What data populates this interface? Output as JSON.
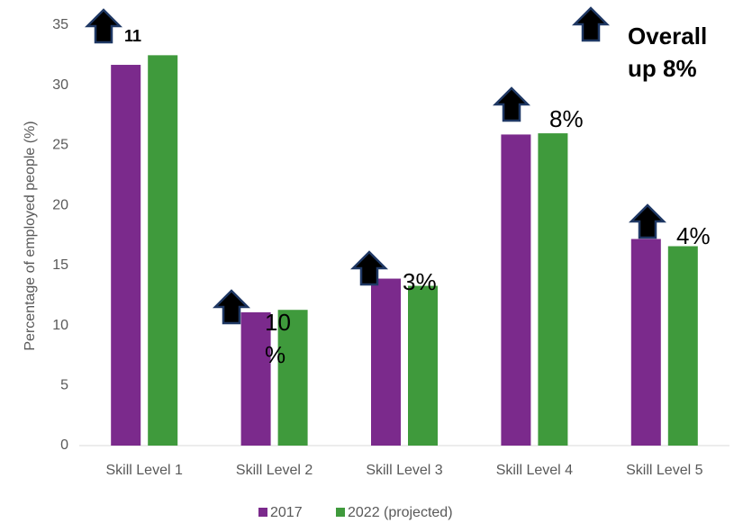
{
  "chart_data": {
    "type": "bar",
    "y_label": "Percentage of employed people (%)",
    "categories": [
      "Skill Level 1",
      "Skill Level 2",
      "Skill Level 3",
      "Skill Level 4",
      "Skill Level 5"
    ],
    "series": [
      {
        "name": "2017",
        "color": "#7b2a8c",
        "values": [
          31.7,
          11.1,
          13.9,
          25.9,
          17.2
        ]
      },
      {
        "name": "2022 (projected)",
        "color": "#3f9a3c",
        "values": [
          32.5,
          11.3,
          13.3,
          26.0,
          16.6
        ]
      }
    ],
    "ylim": [
      0,
      35
    ],
    "yticks": [
      0,
      5,
      10,
      15,
      20,
      25,
      30,
      35
    ],
    "grid": false,
    "legend": "bottom",
    "annotations": [
      "11",
      "10\n%",
      "3%",
      "8%",
      "4%",
      "Overall\nup 8%"
    ]
  }
}
